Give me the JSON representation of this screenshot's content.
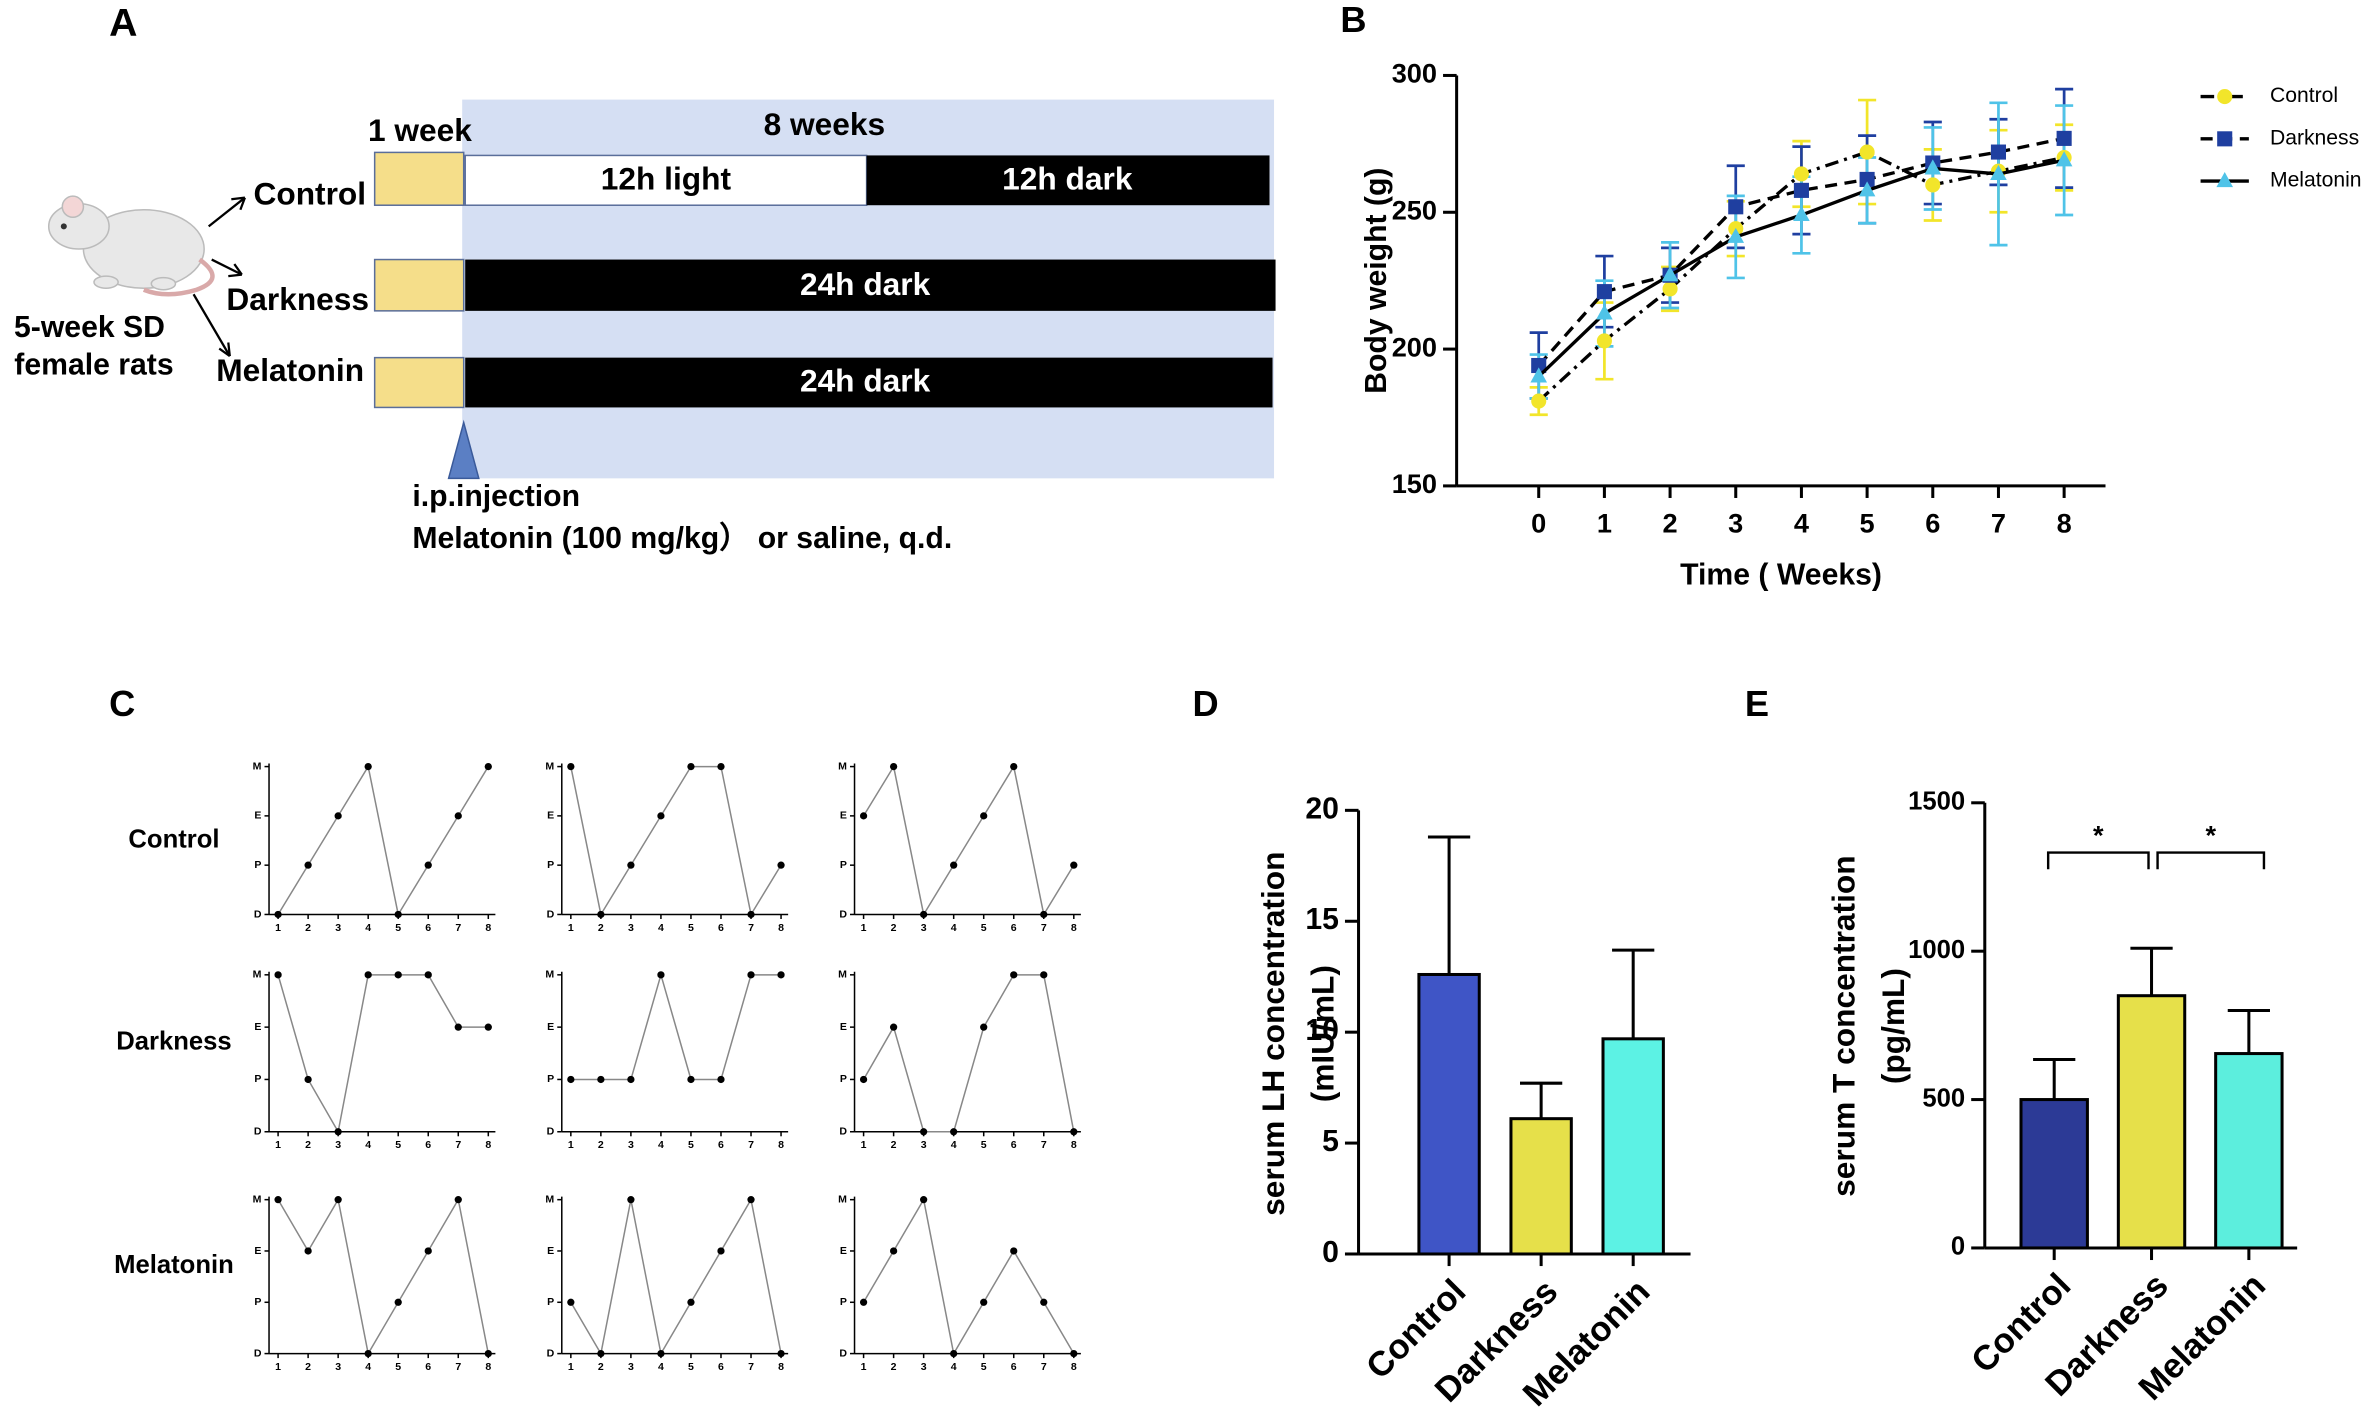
{
  "panel_labels": [
    "A",
    "B",
    "C",
    "D",
    "E"
  ],
  "diagram": {
    "groups": [
      "Control",
      "Darkness",
      "Melatonin"
    ],
    "acclimation": "1 week",
    "treatment": "8 weeks",
    "control_light": "12h light",
    "control_dark": "12h dark",
    "dark_bars": [
      "24h dark",
      "24h dark"
    ],
    "animals": [
      "5-week SD",
      "female rats"
    ],
    "injection": [
      "i.p.injection",
      "Melatonin (100 mg/kg） or saline, q.d."
    ]
  },
  "chart_data": [
    {
      "type": "line",
      "xlabel": "Time ( Weeks)",
      "ylabel": "Body weight (g)",
      "x": [
        0,
        1,
        2,
        3,
        4,
        5,
        6,
        7,
        8
      ],
      "xlim": [
        -1.25,
        8.63
      ],
      "xticks": [
        0,
        1,
        2,
        3,
        4,
        5,
        6,
        7,
        8
      ],
      "ylim": [
        150,
        300
      ],
      "yticks": [
        150,
        200,
        250,
        300
      ],
      "legend": "right",
      "series": [
        {
          "name": "Control",
          "color": "#f2e52a",
          "marker": "circle",
          "line_style": "dashdot",
          "values": [
            181,
            203,
            222,
            244,
            264,
            272,
            260,
            265,
            270
          ],
          "errors": [
            5,
            14,
            8,
            10,
            12,
            19,
            13,
            15,
            12
          ]
        },
        {
          "name": "Darkness",
          "color": "#1f3fa0",
          "marker": "square",
          "line_style": "dashed",
          "values": [
            194,
            221,
            227,
            252,
            258,
            262,
            268,
            272,
            277
          ],
          "errors": [
            12,
            13,
            10,
            15,
            16,
            16,
            15,
            12,
            18
          ]
        },
        {
          "name": "Melatonin",
          "color": "#4fc3e8",
          "marker": "triangle",
          "line_style": "solid",
          "values": [
            190,
            213,
            227,
            241,
            249,
            258,
            266,
            264,
            269
          ],
          "errors": [
            8,
            12,
            12,
            15,
            14,
            12,
            15,
            26,
            20
          ]
        }
      ]
    },
    {
      "type": "stage-grid",
      "rows": [
        "Control",
        "Darkness",
        "Melatonin"
      ],
      "ylabels": [
        "D",
        "P",
        "E",
        "M"
      ],
      "xticks": [
        1,
        2,
        3,
        4,
        5,
        6,
        7,
        8
      ],
      "panels": [
        [
          [
            "D",
            "P",
            "E",
            "M",
            "D",
            "P",
            "E",
            "M"
          ],
          [
            "M",
            "D",
            "P",
            "E",
            "M",
            "M",
            "D",
            "P"
          ],
          [
            "E",
            "M",
            "D",
            "P",
            "E",
            "M",
            "D",
            "P"
          ]
        ],
        [
          [
            "M",
            "P",
            "D",
            "M",
            "M",
            "M",
            "E",
            "E"
          ],
          [
            "P",
            "P",
            "P",
            "M",
            "P",
            "P",
            "M",
            "M"
          ],
          [
            "P",
            "E",
            "D",
            "D",
            "E",
            "M",
            "M",
            "D"
          ]
        ],
        [
          [
            "M",
            "E",
            "M",
            "D",
            "P",
            "E",
            "M",
            "D"
          ],
          [
            "P",
            "D",
            "M",
            "D",
            "P",
            "E",
            "M",
            "D"
          ],
          [
            "P",
            "E",
            "M",
            "D",
            "P",
            "E",
            "P",
            "D"
          ]
        ]
      ]
    },
    {
      "type": "bar",
      "ylabel": [
        "serum LH concentration",
        "(mIU/mL)"
      ],
      "categories": [
        "Control",
        "Darkness",
        "Melatonin"
      ],
      "values": [
        12.6,
        6.1,
        9.7
      ],
      "errors": [
        6.2,
        1.6,
        4.0
      ],
      "colors": [
        "#3f55c6",
        "#e6e04a",
        "#5cf2e4"
      ],
      "ylim": [
        0,
        20
      ],
      "yticks": [
        0,
        5,
        10,
        15,
        20
      ]
    },
    {
      "type": "bar",
      "ylabel": [
        "serum T concentration",
        "(pg/mL)"
      ],
      "categories": [
        "Control",
        "Darkness",
        "Melatonin"
      ],
      "values": [
        500,
        850,
        655
      ],
      "errors": [
        135,
        160,
        145
      ],
      "colors": [
        "#2c3a96",
        "#e6e04a",
        "#5ceedd"
      ],
      "ylim": [
        0,
        1500
      ],
      "yticks": [
        0,
        500,
        1000,
        1500
      ],
      "annotations": [
        {
          "text": "*",
          "from": "Control",
          "to": "Darkness"
        },
        {
          "text": "*",
          "from": "Darkness",
          "to": "Melatonin"
        }
      ]
    }
  ]
}
